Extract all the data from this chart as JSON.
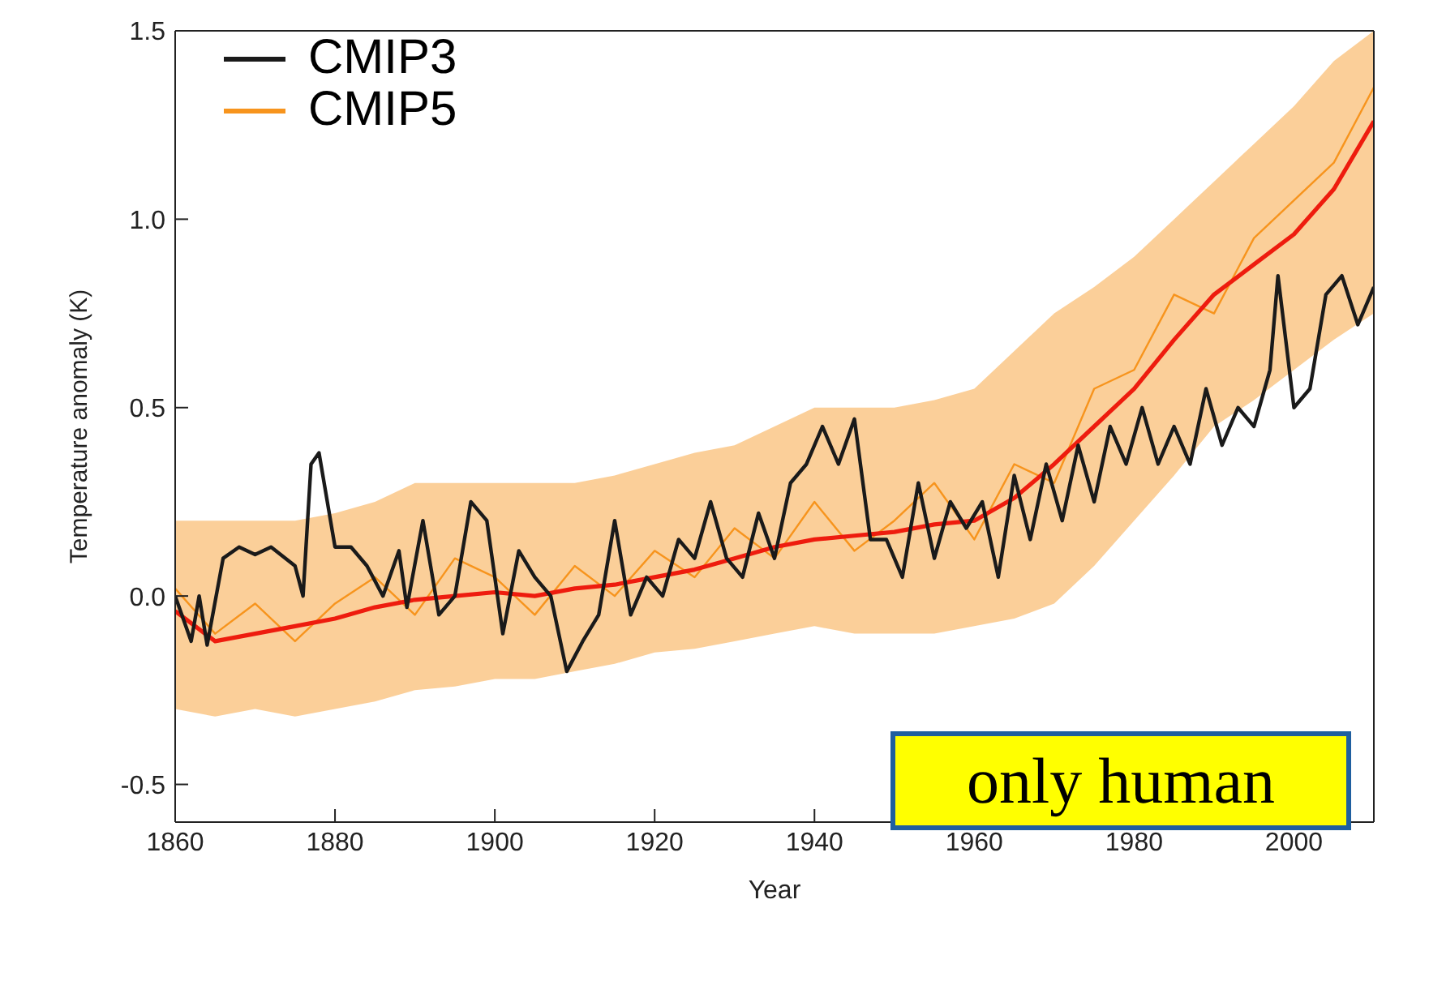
{
  "chart_data": {
    "type": "line",
    "xlabel": "Year",
    "ylabel": "Temperature anomaly (K)",
    "xlim": [
      1860,
      2010
    ],
    "xticks": [
      1860,
      1880,
      1900,
      1920,
      1940,
      1960,
      1980,
      2000
    ],
    "ylim": [
      -0.6,
      1.5
    ],
    "yticks": [
      -0.5,
      {
        "value": 0,
        "label": "0.0"
      },
      0.5,
      {
        "value": 1,
        "label": "1.0"
      },
      1.5
    ],
    "legend": "top left",
    "annotations": [
      "only human"
    ],
    "series": [
      {
        "name": "CMIP3",
        "color": "#1a1a1a",
        "x": [
          1860,
          1862,
          1863,
          1864,
          1866,
          1868,
          1870,
          1872,
          1875,
          1876,
          1877,
          1878,
          1880,
          1882,
          1884,
          1886,
          1888,
          1889,
          1891,
          1893,
          1895,
          1897,
          1899,
          1901,
          1903,
          1905,
          1907,
          1909,
          1911,
          1913,
          1915,
          1917,
          1919,
          1921,
          1923,
          1925,
          1927,
          1929,
          1931,
          1933,
          1935,
          1937,
          1939,
          1941,
          1943,
          1945,
          1947,
          1949,
          1951,
          1953,
          1955,
          1957,
          1959,
          1961,
          1963,
          1965,
          1967,
          1969,
          1971,
          1973,
          1975,
          1977,
          1979,
          1981,
          1983,
          1985,
          1987,
          1989,
          1991,
          1993,
          1995,
          1997,
          1998,
          2000,
          2002,
          2004,
          2006,
          2008,
          2010
        ],
        "values": [
          0.0,
          -0.12,
          0.0,
          -0.13,
          0.1,
          0.13,
          0.11,
          0.13,
          0.08,
          0.0,
          0.35,
          0.38,
          0.13,
          0.13,
          0.08,
          0.0,
          0.12,
          -0.03,
          0.2,
          -0.05,
          0.0,
          0.25,
          0.2,
          -0.1,
          0.12,
          0.05,
          0.0,
          -0.2,
          -0.12,
          -0.05,
          0.2,
          -0.05,
          0.05,
          0.0,
          0.15,
          0.1,
          0.25,
          0.1,
          0.05,
          0.22,
          0.1,
          0.3,
          0.35,
          0.45,
          0.35,
          0.47,
          0.15,
          0.15,
          0.05,
          0.3,
          0.1,
          0.25,
          0.18,
          0.25,
          0.05,
          0.32,
          0.15,
          0.35,
          0.2,
          0.4,
          0.25,
          0.45,
          0.35,
          0.5,
          0.35,
          0.45,
          0.35,
          0.55,
          0.4,
          0.5,
          0.45,
          0.6,
          0.85,
          0.5,
          0.55,
          0.8,
          0.85,
          0.72,
          0.82
        ]
      },
      {
        "name": "CMIP5",
        "color": "#f7941d",
        "x": [
          1860,
          1865,
          1870,
          1875,
          1880,
          1885,
          1890,
          1895,
          1900,
          1905,
          1910,
          1915,
          1920,
          1925,
          1930,
          1935,
          1940,
          1945,
          1950,
          1955,
          1960,
          1965,
          1970,
          1975,
          1980,
          1985,
          1990,
          1995,
          2000,
          2005,
          2010
        ],
        "values": [
          0.02,
          -0.1,
          -0.02,
          -0.12,
          -0.02,
          0.05,
          -0.05,
          0.1,
          0.05,
          -0.05,
          0.08,
          0.0,
          0.12,
          0.05,
          0.18,
          0.1,
          0.25,
          0.12,
          0.2,
          0.3,
          0.15,
          0.35,
          0.3,
          0.55,
          0.6,
          0.8,
          0.75,
          0.95,
          1.05,
          1.15,
          1.35
        ],
        "lower": [
          -0.3,
          -0.32,
          -0.3,
          -0.32,
          -0.3,
          -0.28,
          -0.25,
          -0.24,
          -0.22,
          -0.22,
          -0.2,
          -0.18,
          -0.15,
          -0.14,
          -0.12,
          -0.1,
          -0.08,
          -0.1,
          -0.1,
          -0.1,
          -0.08,
          -0.06,
          -0.02,
          0.08,
          0.2,
          0.32,
          0.45,
          0.52,
          0.6,
          0.68,
          0.75
        ],
        "upper": [
          0.2,
          0.2,
          0.2,
          0.2,
          0.22,
          0.25,
          0.3,
          0.3,
          0.3,
          0.3,
          0.3,
          0.32,
          0.35,
          0.38,
          0.4,
          0.45,
          0.5,
          0.5,
          0.5,
          0.52,
          0.55,
          0.65,
          0.75,
          0.82,
          0.9,
          1.0,
          1.1,
          1.2,
          1.3,
          1.42,
          1.5
        ]
      },
      {
        "color": "#ee1c0e",
        "x": [
          1860,
          1865,
          1870,
          1875,
          1880,
          1885,
          1890,
          1895,
          1900,
          1905,
          1910,
          1915,
          1920,
          1925,
          1930,
          1935,
          1940,
          1945,
          1950,
          1955,
          1960,
          1965,
          1970,
          1975,
          1980,
          1985,
          1990,
          1995,
          2000,
          2005,
          2010
        ],
        "values": [
          -0.04,
          -0.12,
          -0.1,
          -0.08,
          -0.06,
          -0.03,
          -0.01,
          0.0,
          0.01,
          0.0,
          0.02,
          0.03,
          0.05,
          0.07,
          0.1,
          0.13,
          0.15,
          0.16,
          0.17,
          0.19,
          0.2,
          0.26,
          0.35,
          0.45,
          0.55,
          0.68,
          0.8,
          0.88,
          0.96,
          1.08,
          1.26
        ]
      }
    ]
  }
}
